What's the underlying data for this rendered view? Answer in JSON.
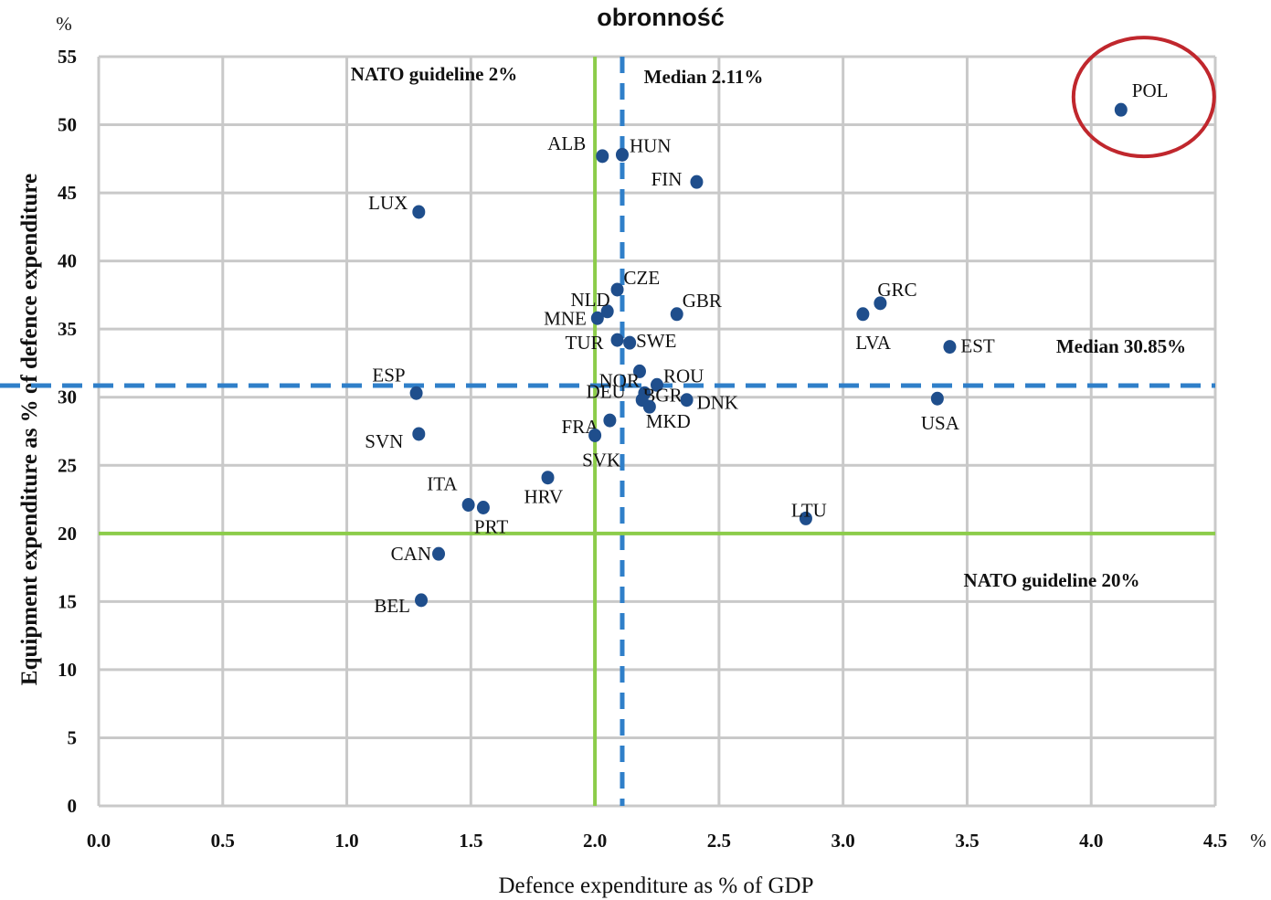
{
  "chart_data": {
    "type": "scatter",
    "title": "obronność",
    "xlabel": "Defence expenditure as % of GDP",
    "ylabel": "Equipment expenditure as % of defence expenditure",
    "x_unit": "%",
    "y_unit": "%",
    "xlim": [
      0,
      4.5
    ],
    "ylim": [
      0,
      55
    ],
    "x_ticks": [
      "0.0",
      "0.5",
      "1.0",
      "1.5",
      "2.0",
      "2.5",
      "3.0",
      "3.5",
      "4.0",
      "4.5"
    ],
    "y_ticks": [
      "0",
      "5",
      "10",
      "15",
      "20",
      "25",
      "30",
      "35",
      "40",
      "45",
      "50",
      "55"
    ],
    "grid": true,
    "point_color": "#1f4e8c",
    "points": [
      {
        "label": "POL",
        "x": 4.12,
        "y": 51.1
      },
      {
        "label": "ALB",
        "x": 2.03,
        "y": 47.7
      },
      {
        "label": "HUN",
        "x": 2.11,
        "y": 47.8
      },
      {
        "label": "FIN",
        "x": 2.41,
        "y": 45.8
      },
      {
        "label": "LUX",
        "x": 1.29,
        "y": 43.6
      },
      {
        "label": "CZE",
        "x": 2.09,
        "y": 37.9
      },
      {
        "label": "NLD",
        "x": 2.05,
        "y": 36.3
      },
      {
        "label": "GBR",
        "x": 2.33,
        "y": 36.1
      },
      {
        "label": "MNE",
        "x": 2.01,
        "y": 35.8
      },
      {
        "label": "TUR",
        "x": 2.09,
        "y": 34.2
      },
      {
        "label": "SWE",
        "x": 2.14,
        "y": 34.0
      },
      {
        "label": "GRC",
        "x": 3.15,
        "y": 36.9
      },
      {
        "label": "LVA",
        "x": 3.08,
        "y": 36.1
      },
      {
        "label": "EST",
        "x": 3.43,
        "y": 33.7
      },
      {
        "label": "ESP",
        "x": 1.28,
        "y": 30.3
      },
      {
        "label": "ROU",
        "x": 2.25,
        "y": 30.9
      },
      {
        "label": "NOR",
        "x": 2.18,
        "y": 31.9
      },
      {
        "label": "BGR",
        "x": 2.2,
        "y": 30.3
      },
      {
        "label": "DNK",
        "x": 2.37,
        "y": 29.8
      },
      {
        "label": "DEU",
        "x": 2.19,
        "y": 29.8
      },
      {
        "label": "MKD",
        "x": 2.22,
        "y": 29.3
      },
      {
        "label": "FRA",
        "x": 2.06,
        "y": 28.3
      },
      {
        "label": "SVK",
        "x": 2.0,
        "y": 27.2
      },
      {
        "label": "SVN",
        "x": 1.29,
        "y": 27.3
      },
      {
        "label": "USA",
        "x": 3.38,
        "y": 29.9
      },
      {
        "label": "HRV",
        "x": 1.81,
        "y": 24.1
      },
      {
        "label": "ITA",
        "x": 1.49,
        "y": 22.1
      },
      {
        "label": "PRT",
        "x": 1.55,
        "y": 21.9
      },
      {
        "label": "LTU",
        "x": 2.85,
        "y": 21.1
      },
      {
        "label": "CAN",
        "x": 1.37,
        "y": 18.5
      },
      {
        "label": "BEL",
        "x": 1.3,
        "y": 15.1
      }
    ],
    "reference_lines": [
      {
        "axis": "x",
        "value": 2.0,
        "label": "NATO guideline 2%",
        "style": "solid",
        "color": "#8ccc4a"
      },
      {
        "axis": "x",
        "value": 2.11,
        "label": "Median 2.11%",
        "style": "dashed",
        "color": "#2f7fc9"
      },
      {
        "axis": "y",
        "value": 30.85,
        "label": "Median 30.85%",
        "style": "dashed",
        "color": "#2f7fc9"
      },
      {
        "axis": "y",
        "value": 20,
        "label": "NATO guideline 20%",
        "style": "solid",
        "color": "#8ccc4a"
      }
    ],
    "highlight": {
      "label": "POL",
      "color": "#c0272d"
    }
  }
}
